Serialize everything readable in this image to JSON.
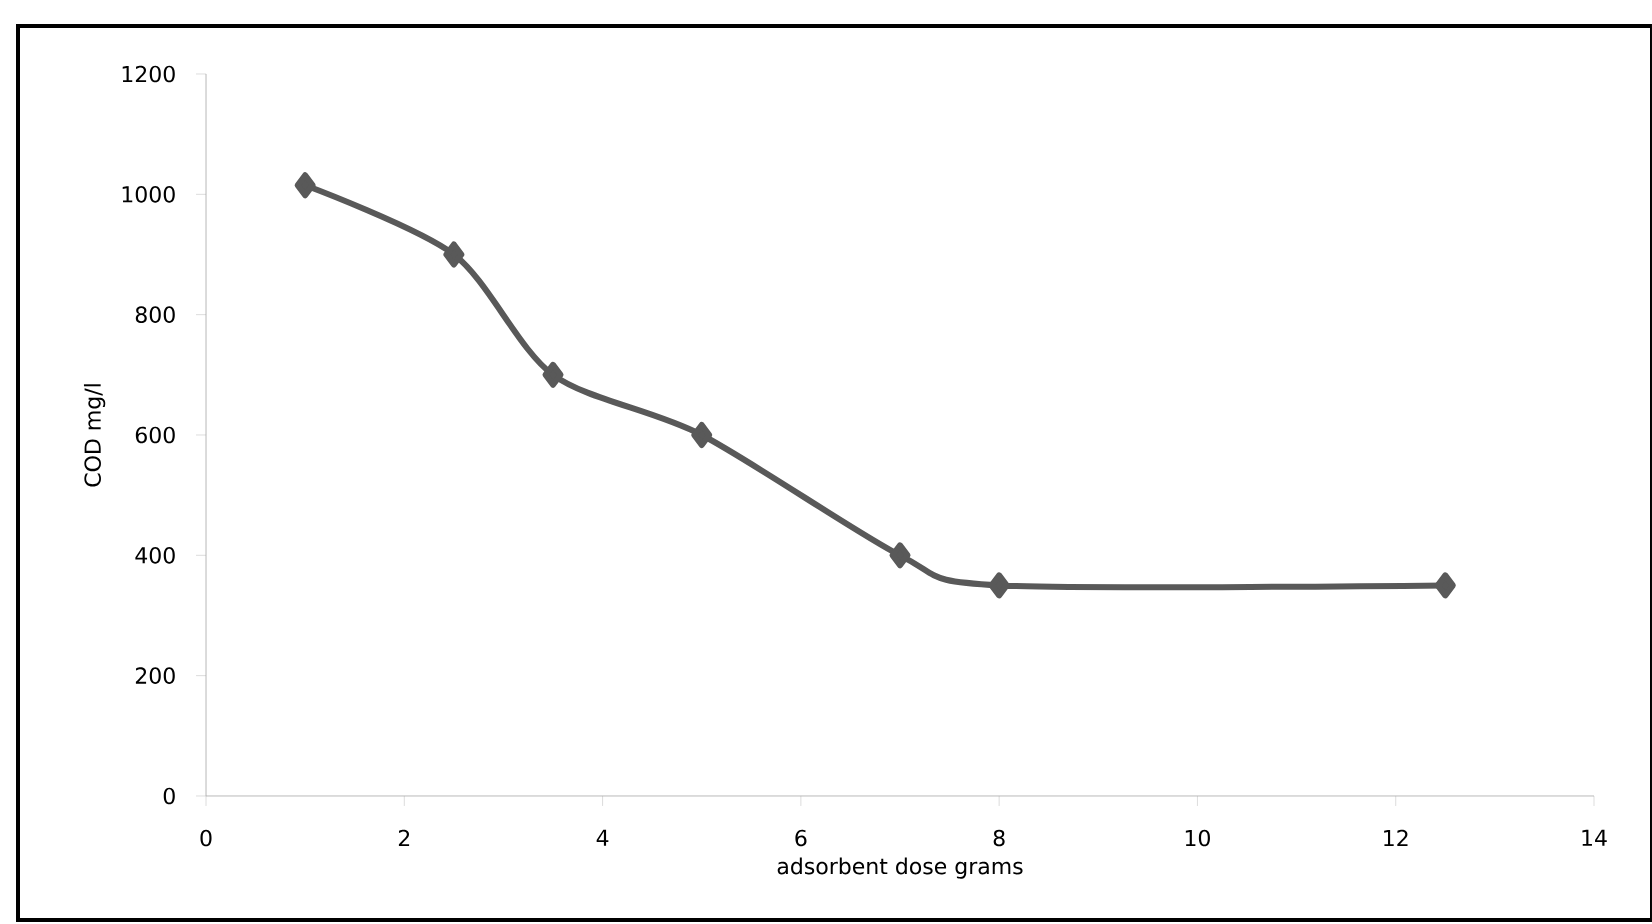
{
  "chart_data": {
    "type": "line",
    "xlabel": "adsorbent dose grams",
    "ylabel": "COD mg/l",
    "x": [
      1,
      2.5,
      3.5,
      5,
      7,
      8,
      12.5
    ],
    "series": [
      {
        "color": "#595959",
        "values": [
          1015,
          900,
          700,
          600,
          400,
          350,
          350
        ]
      }
    ],
    "xlim": [
      0,
      14
    ],
    "xticks": [
      0,
      2,
      4,
      6,
      8,
      10,
      12,
      14
    ],
    "ylim": [
      0,
      1200
    ],
    "yticks": [
      0,
      200,
      400,
      600,
      800,
      1000,
      1200
    ],
    "marker": "diamond",
    "line_style": "solid"
  }
}
